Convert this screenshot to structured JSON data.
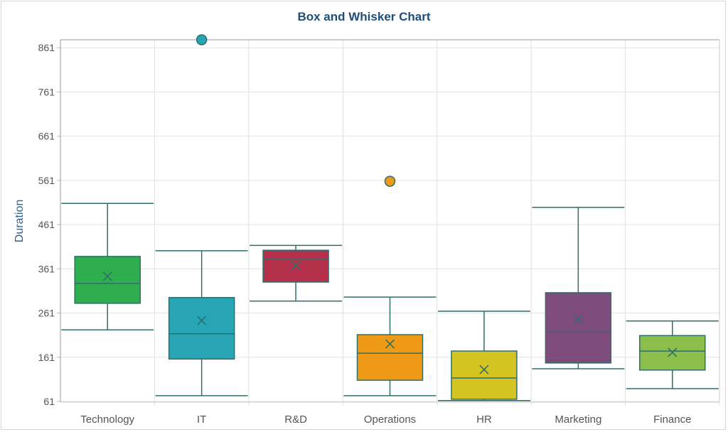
{
  "chart_data": {
    "type": "box",
    "title": "Box and Whisker Chart",
    "xlabel": "",
    "ylabel": "Duration",
    "ylim": [
      61,
      879
    ],
    "yticks": [
      61,
      161,
      261,
      361,
      461,
      561,
      661,
      761,
      861
    ],
    "grid": true,
    "categories": [
      "Technology",
      "IT",
      "R&D",
      "Operations",
      "HR",
      "Marketing",
      "Finance"
    ],
    "boxes": [
      {
        "category": "Technology",
        "min": 223,
        "q1": 283,
        "median": 328,
        "q3": 389,
        "max": 509,
        "mean": 344,
        "outliers": [],
        "color": "#2eae4f"
      },
      {
        "category": "IT",
        "min": 74,
        "q1": 157,
        "median": 214,
        "q3": 296,
        "max": 402,
        "mean": 244,
        "outliers": [
          879
        ],
        "color": "#27a5b5"
      },
      {
        "category": "R&D",
        "min": 288,
        "q1": 331,
        "median": 384,
        "q3": 403,
        "max": 414,
        "mean": 368,
        "outliers": [],
        "color": "#b5304a"
      },
      {
        "category": "Operations",
        "min": 74,
        "q1": 109,
        "median": 170,
        "q3": 212,
        "max": 297,
        "mean": 191,
        "outliers": [
          559
        ],
        "color": "#ef9a16"
      },
      {
        "category": "HR",
        "min": 63,
        "q1": 66,
        "median": 114,
        "q3": 175,
        "max": 265,
        "mean": 133,
        "outliers": [],
        "color": "#d3c421"
      },
      {
        "category": "Marketing",
        "min": 135,
        "q1": 148,
        "median": 218,
        "q3": 307,
        "max": 500,
        "mean": 246,
        "outliers": [],
        "color": "#7e4b7d"
      },
      {
        "category": "Finance",
        "min": 90,
        "q1": 132,
        "median": 175,
        "q3": 210,
        "max": 243,
        "mean": 172,
        "outliers": [],
        "color": "#8bbe4a"
      }
    ],
    "stroke_color": "#2f6f6a"
  }
}
